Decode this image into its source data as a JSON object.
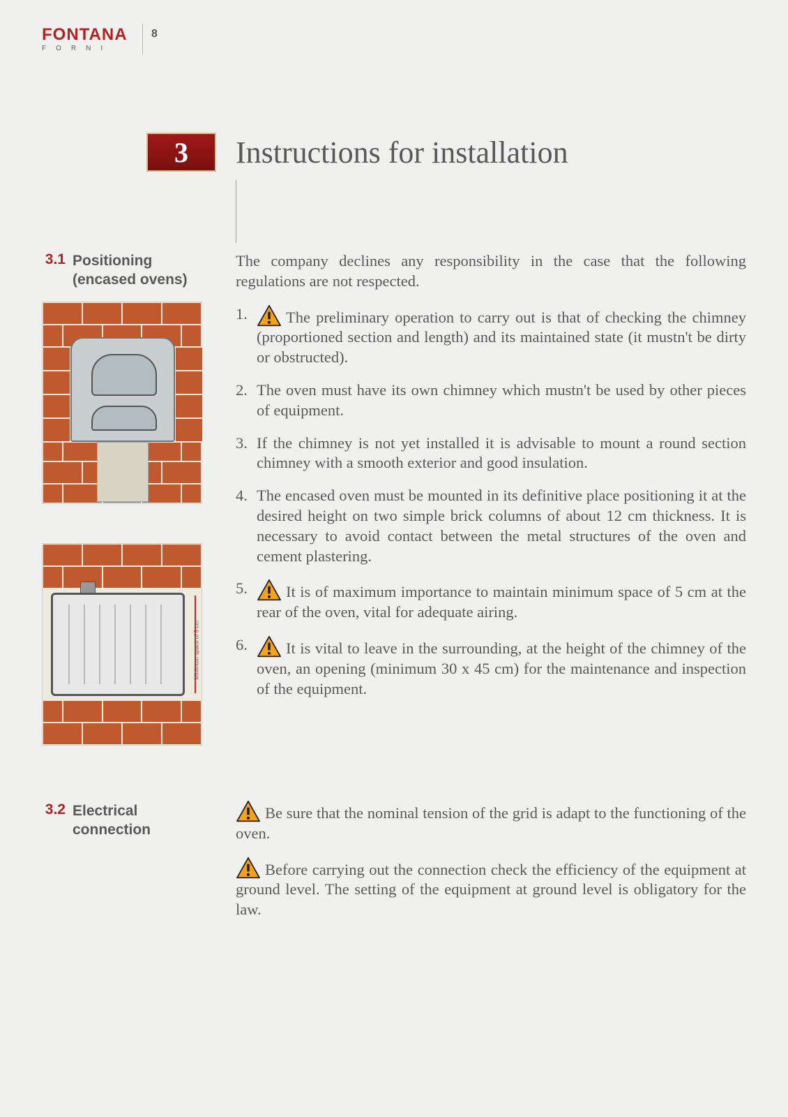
{
  "header": {
    "logo_main": "FONTANA",
    "logo_sub": "FORNI",
    "page_number": "8"
  },
  "chapter": {
    "number": "3",
    "title": "Instructions for installation",
    "badge_bg_start": "#a01818",
    "badge_bg_end": "#7a1010",
    "badge_border": "#d0c090",
    "title_fontsize": 44
  },
  "colors": {
    "accent": "#b22222",
    "body_text": "#58595b",
    "page_bg": "#f0f0ef",
    "brick": "#c1592e",
    "warn_fill": "#f6a21b",
    "warn_stroke": "#222222"
  },
  "sections": {
    "s31": {
      "num": "3.1",
      "title_line1": "Positioning",
      "title_line2": "(encased ovens)"
    },
    "s32": {
      "num": "3.2",
      "title_line1": "Electrical",
      "title_line2": "connection"
    }
  },
  "figure2": {
    "spacer_label": "Minimum space of 5 cm"
  },
  "body": {
    "intro": "The company declines any responsibility in the case that the following regulations are not respected.",
    "items": [
      {
        "n": "1.",
        "warn": true,
        "text": "The preliminary operation to carry out is that of checking the chimney (proportioned section and length) and its maintained state (it mustn't be dirty or obstructed)."
      },
      {
        "n": "2.",
        "warn": false,
        "text": "The oven must have its own chimney which mustn't be used by other pieces of equipment."
      },
      {
        "n": "3.",
        "warn": false,
        "text": "If the chimney is not yet installed it is advisable to mount a round section chimney with a smooth exterior and good insulation."
      },
      {
        "n": "4.",
        "warn": false,
        "text": "The encased oven must be mounted in its definitive place positioning it at the desired height on two simple brick columns of about 12 cm thickness. It is necessary to avoid contact between the metal structures of the oven and cement plastering."
      },
      {
        "n": "5.",
        "warn": true,
        "text": "It is of maximum importance to maintain minimum space of 5 cm at the rear of the oven, vital for adequate airing."
      },
      {
        "n": "6.",
        "warn": true,
        "text": "It is vital to leave in the surrounding, at the height of the chimney of the oven, an opening (minimum 30 x 45 cm) for the maintenance and inspection of the equipment."
      }
    ],
    "s32_paras": [
      {
        "warn": true,
        "text": "Be sure that the  nominal tension of the grid is adapt to the functioning of the oven."
      },
      {
        "warn": true,
        "text": "Before carrying out the connection check the efficiency of the equipment at ground level. The setting of the equipment at ground level is obligatory for the law."
      }
    ]
  }
}
